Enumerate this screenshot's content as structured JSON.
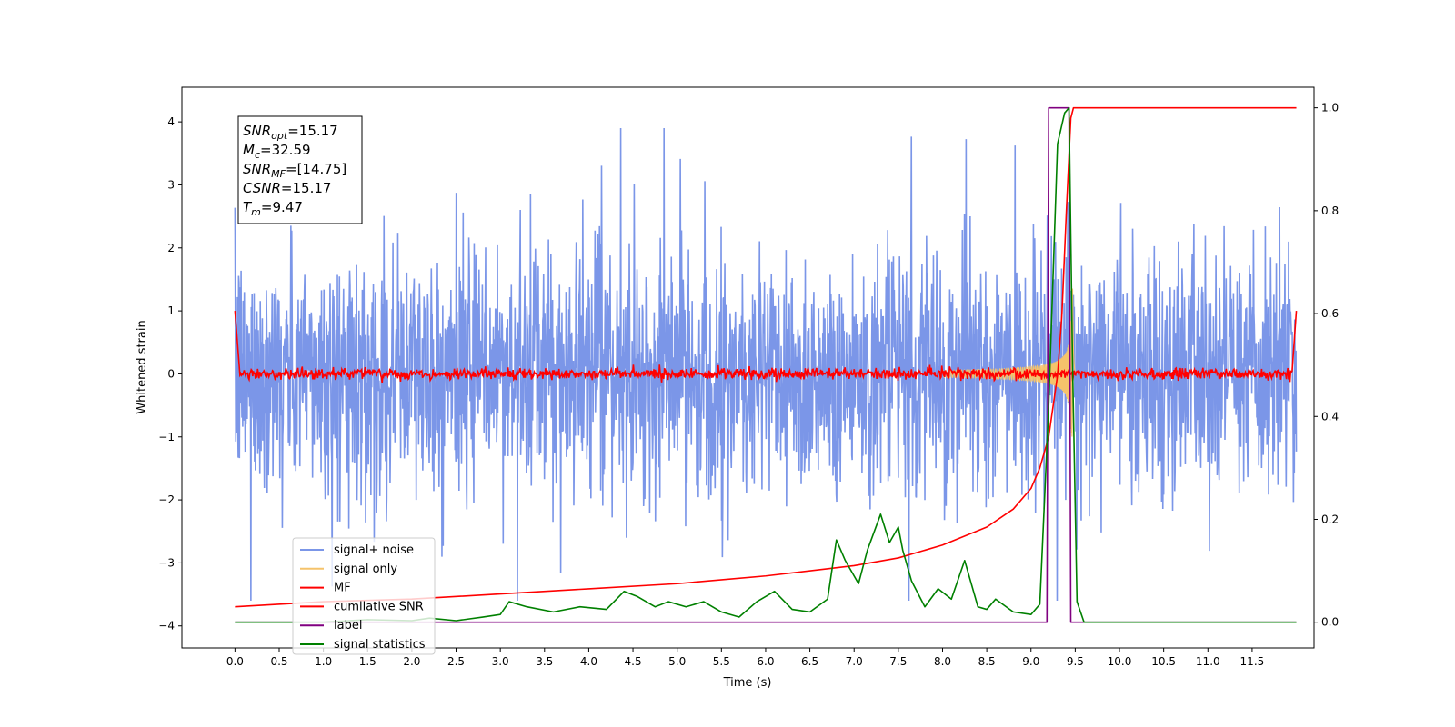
{
  "chart_data": {
    "type": "line",
    "title": "",
    "xlabel": "Time (s)",
    "ylabel": "Whitened strain",
    "xlim": [
      -0.6,
      12.2
    ],
    "ylim": [
      -4.35,
      4.55
    ],
    "y2lim": [
      -0.05,
      1.04
    ],
    "x_ticks": [
      "0.0",
      "0.5",
      "1.0",
      "1.5",
      "2.0",
      "2.5",
      "3.0",
      "3.5",
      "4.0",
      "4.5",
      "5.0",
      "5.5",
      "6.0",
      "6.5",
      "7.0",
      "7.5",
      "8.0",
      "8.5",
      "9.0",
      "9.5",
      "10.0",
      "10.5",
      "11.0",
      "11.5"
    ],
    "y_ticks": [
      "−4",
      "−3",
      "−2",
      "−1",
      "0",
      "1",
      "2",
      "3",
      "4"
    ],
    "y2_ticks": [
      "0.0",
      "0.2",
      "0.4",
      "0.6",
      "0.8",
      "1.0"
    ],
    "grid": false,
    "legend_position": "lower-left",
    "info_box": [
      {
        "sym": "SNR",
        "sub": "opt",
        "val": "=15.17"
      },
      {
        "sym": "M",
        "sub": "c",
        "val": "=32.59"
      },
      {
        "sym": "SNR",
        "sub": "MF",
        "val": "=[14.75]"
      },
      {
        "sym": "CSNR",
        "sub": "",
        "val": "=15.17"
      },
      {
        "sym": "T",
        "sub": "m",
        "val": "=9.47"
      }
    ],
    "series": [
      {
        "name": "signal+ noise",
        "color": "#7b96e8",
        "axis": "left",
        "kind": "noise",
        "x_range": [
          0,
          12
        ],
        "sigma": 0.95
      },
      {
        "name": "signal only",
        "color": "#f5c36b",
        "axis": "left",
        "kind": "chirp",
        "merger_time": 9.47,
        "peak_amplitude": 1.4
      },
      {
        "name": "MF",
        "color": "#ff0000",
        "axis": "left",
        "kind": "mf",
        "level": 0.0
      },
      {
        "name": "cumilative SNR",
        "color": "#ff0000",
        "axis": "right",
        "x": [
          0,
          1,
          2,
          3,
          4,
          5,
          6,
          7,
          7.5,
          8,
          8.5,
          8.8,
          9.0,
          9.1,
          9.2,
          9.3,
          9.35,
          9.4,
          9.45,
          9.48,
          9.5,
          12
        ],
        "y": [
          0.03,
          0.04,
          0.045,
          0.055,
          0.065,
          0.075,
          0.09,
          0.11,
          0.125,
          0.15,
          0.185,
          0.22,
          0.26,
          0.3,
          0.36,
          0.48,
          0.6,
          0.8,
          0.98,
          1.0,
          1.0,
          1.0
        ]
      },
      {
        "name": "label",
        "color": "#800080",
        "axis": "right",
        "x": [
          0,
          9.18,
          9.2,
          9.43,
          9.45,
          12
        ],
        "y": [
          0.0,
          0.0,
          1.0,
          1.0,
          0.0,
          0.0
        ]
      },
      {
        "name": "signal statistics",
        "color": "#008000",
        "axis": "right",
        "x": [
          0,
          0.5,
          1.0,
          1.5,
          2.0,
          2.2,
          2.5,
          2.8,
          3.0,
          3.1,
          3.3,
          3.6,
          3.9,
          4.2,
          4.4,
          4.55,
          4.75,
          4.9,
          5.1,
          5.3,
          5.5,
          5.7,
          5.9,
          6.1,
          6.3,
          6.5,
          6.7,
          6.8,
          6.9,
          7.05,
          7.15,
          7.3,
          7.4,
          7.5,
          7.55,
          7.65,
          7.8,
          7.95,
          8.1,
          8.25,
          8.4,
          8.5,
          8.6,
          8.8,
          9.0,
          9.1,
          9.2,
          9.3,
          9.38,
          9.43,
          9.47,
          9.52,
          9.6,
          12
        ],
        "y": [
          0.0,
          0.0,
          0.0,
          0.005,
          0.003,
          0.008,
          0.003,
          0.01,
          0.015,
          0.04,
          0.03,
          0.02,
          0.03,
          0.025,
          0.06,
          0.05,
          0.03,
          0.04,
          0.03,
          0.04,
          0.02,
          0.01,
          0.04,
          0.06,
          0.025,
          0.02,
          0.045,
          0.16,
          0.12,
          0.075,
          0.14,
          0.21,
          0.155,
          0.185,
          0.14,
          0.08,
          0.03,
          0.065,
          0.045,
          0.12,
          0.03,
          0.025,
          0.045,
          0.02,
          0.015,
          0.035,
          0.42,
          0.93,
          0.99,
          1.0,
          0.5,
          0.04,
          0.0,
          0.0
        ]
      }
    ]
  }
}
